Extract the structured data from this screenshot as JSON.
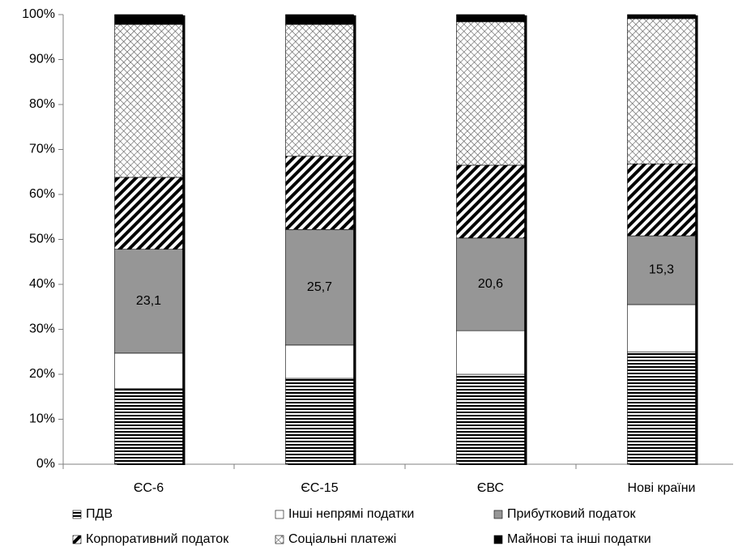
{
  "chart_data": {
    "type": "stacked-bar",
    "categories": [
      "ЄС-6",
      "ЄС-15",
      "ЄВС",
      "Нові країни"
    ],
    "ylim": [
      0,
      100
    ],
    "yticks": [
      {
        "value": 0,
        "label": "0%"
      },
      {
        "value": 10,
        "label": "10%"
      },
      {
        "value": 20,
        "label": "20%"
      },
      {
        "value": 30,
        "label": "30%"
      },
      {
        "value": 40,
        "label": "40%"
      },
      {
        "value": 50,
        "label": "50%"
      },
      {
        "value": 60,
        "label": "60%"
      },
      {
        "value": 70,
        "label": "70%"
      },
      {
        "value": 80,
        "label": "80%"
      },
      {
        "value": 90,
        "label": "90%"
      },
      {
        "value": 100,
        "label": "100%"
      }
    ],
    "series": [
      {
        "name": "ПДВ",
        "color": "#000000",
        "pattern": "horizontal-lines",
        "values": [
          16.8,
          19.1,
          20.0,
          25.0
        ]
      },
      {
        "name": "Інші непрямі податки",
        "color": "#ffffff",
        "pattern": "solid",
        "values": [
          7.9,
          7.4,
          9.7,
          10.5
        ]
      },
      {
        "name": "Прибутковий податок",
        "color": "#969696",
        "pattern": "solid",
        "values": [
          23.1,
          25.7,
          20.6,
          15.3
        ],
        "value_labels": [
          "23,1",
          "25,7",
          "20,6",
          "15,3"
        ]
      },
      {
        "name": "Корпоративний податок",
        "color": "#000000",
        "pattern": "diagonal-lines",
        "values": [
          16.0,
          16.3,
          16.2,
          16.0
        ]
      },
      {
        "name": "Соціальні платежі",
        "color": "#000000",
        "pattern": "crosshatch",
        "values": [
          34.0,
          29.3,
          31.9,
          32.3
        ]
      },
      {
        "name": "Майнові та інші податки",
        "color": "#000000",
        "pattern": "solid",
        "values": [
          2.2,
          2.2,
          1.6,
          0.9
        ]
      }
    ]
  }
}
